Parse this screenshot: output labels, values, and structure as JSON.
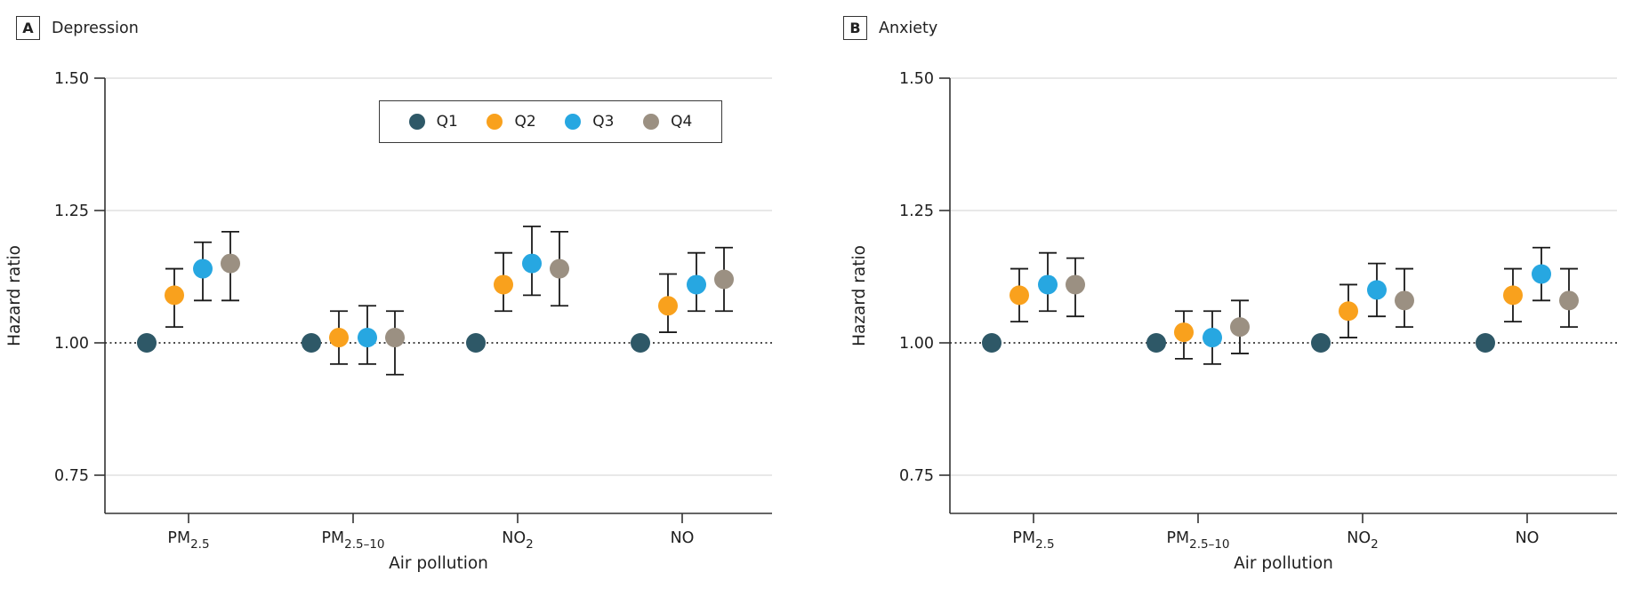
{
  "figure": {
    "panels": [
      {
        "letter": "A",
        "title": "Depression"
      },
      {
        "letter": "B",
        "title": "Anxiety"
      }
    ],
    "legend": {
      "items": [
        {
          "label": "Q1",
          "color": "#2e5867"
        },
        {
          "label": "Q2",
          "color": "#f9a11d"
        },
        {
          "label": "Q3",
          "color": "#27a7e1"
        },
        {
          "label": "Q4",
          "color": "#9b9082"
        }
      ]
    }
  },
  "colors": {
    "q1": "#2e5867",
    "q2": "#f9a11d",
    "q3": "#27a7e1",
    "q4": "#9b9082",
    "error_bar": "#1a1a1a",
    "gridline": "#e8e8e8",
    "axis": "#333333",
    "text": "#1f1f1f",
    "reference_line": "#111111"
  },
  "chart_data": [
    {
      "type": "scatter",
      "panel": "A",
      "title": "Depression",
      "xlabel": "Air pollution",
      "ylabel": "Hazard ratio",
      "ylim": [
        0.68,
        1.5
      ],
      "yticks": [
        1.5,
        1.25,
        1.0,
        0.75
      ],
      "ytick_labels": [
        "1.50",
        "1.25",
        "1.00",
        "0.75"
      ],
      "gridline_values": [
        1.5,
        1.25,
        0.75
      ],
      "reference_line": 1.0,
      "legend_position": "top-center-panel-A",
      "grid": "horizontal-light",
      "categories": [
        "PM2.5",
        "PM2.5–10",
        "NO2",
        "NO"
      ],
      "categories_display": [
        {
          "main": "PM",
          "sub": "2.5"
        },
        {
          "main": "PM",
          "sub": "2.5–10"
        },
        {
          "main": "NO",
          "sub": "2"
        },
        {
          "main": "NO",
          "sub": ""
        }
      ],
      "series": [
        {
          "name": "Q1",
          "color": "#2e5867",
          "values": [
            1.0,
            1.0,
            1.0,
            1.0
          ],
          "ci_low": [
            null,
            null,
            null,
            null
          ],
          "ci_high": [
            null,
            null,
            null,
            null
          ]
        },
        {
          "name": "Q2",
          "color": "#f9a11d",
          "values": [
            1.09,
            1.01,
            1.11,
            1.07
          ],
          "ci_low": [
            1.03,
            0.96,
            1.06,
            1.02
          ],
          "ci_high": [
            1.14,
            1.06,
            1.17,
            1.13
          ]
        },
        {
          "name": "Q3",
          "color": "#27a7e1",
          "values": [
            1.14,
            1.01,
            1.15,
            1.11
          ],
          "ci_low": [
            1.08,
            0.96,
            1.09,
            1.06
          ],
          "ci_high": [
            1.19,
            1.07,
            1.22,
            1.17
          ]
        },
        {
          "name": "Q4",
          "color": "#9b9082",
          "values": [
            1.15,
            1.01,
            1.14,
            1.12
          ],
          "ci_low": [
            1.08,
            0.94,
            1.07,
            1.06
          ],
          "ci_high": [
            1.21,
            1.06,
            1.21,
            1.18
          ]
        }
      ]
    },
    {
      "type": "scatter",
      "panel": "B",
      "title": "Anxiety",
      "xlabel": "Air pollution",
      "ylabel": "Hazard ratio",
      "ylim": [
        0.68,
        1.5
      ],
      "yticks": [
        1.5,
        1.25,
        1.0,
        0.75
      ],
      "ytick_labels": [
        "1.50",
        "1.25",
        "1.00",
        "0.75"
      ],
      "gridline_values": [
        1.5,
        1.25,
        0.75
      ],
      "reference_line": 1.0,
      "grid": "horizontal-light",
      "categories": [
        "PM2.5",
        "PM2.5–10",
        "NO2",
        "NO"
      ],
      "categories_display": [
        {
          "main": "PM",
          "sub": "2.5"
        },
        {
          "main": "PM",
          "sub": "2.5–10"
        },
        {
          "main": "NO",
          "sub": "2"
        },
        {
          "main": "NO",
          "sub": ""
        }
      ],
      "series": [
        {
          "name": "Q1",
          "color": "#2e5867",
          "values": [
            1.0,
            1.0,
            1.0,
            1.0
          ],
          "ci_low": [
            null,
            null,
            null,
            null
          ],
          "ci_high": [
            null,
            null,
            null,
            null
          ]
        },
        {
          "name": "Q2",
          "color": "#f9a11d",
          "values": [
            1.09,
            1.02,
            1.06,
            1.09
          ],
          "ci_low": [
            1.04,
            0.97,
            1.01,
            1.04
          ],
          "ci_high": [
            1.14,
            1.06,
            1.11,
            1.14
          ]
        },
        {
          "name": "Q3",
          "color": "#27a7e1",
          "values": [
            1.11,
            1.01,
            1.1,
            1.13
          ],
          "ci_low": [
            1.06,
            0.96,
            1.05,
            1.08
          ],
          "ci_high": [
            1.17,
            1.06,
            1.15,
            1.18
          ]
        },
        {
          "name": "Q4",
          "color": "#9b9082",
          "values": [
            1.11,
            1.03,
            1.08,
            1.08
          ],
          "ci_low": [
            1.05,
            0.98,
            1.03,
            1.03
          ],
          "ci_high": [
            1.16,
            1.08,
            1.14,
            1.14
          ]
        }
      ]
    }
  ]
}
